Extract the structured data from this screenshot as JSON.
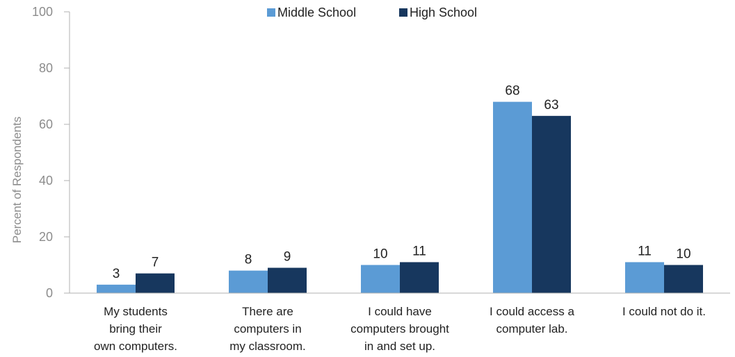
{
  "chart_data": {
    "type": "bar",
    "title": "",
    "xlabel": "",
    "ylabel": "Percent of Respondents",
    "ylim": [
      0,
      100
    ],
    "yticks": [
      0,
      20,
      40,
      60,
      80,
      100
    ],
    "grid": false,
    "legend_position": "top-center",
    "categories": [
      [
        "My students",
        "bring their",
        "own computers."
      ],
      [
        "There are",
        "computers in",
        "my classroom."
      ],
      [
        "I could have",
        "computers brought",
        "in and set up."
      ],
      [
        "I could access a",
        "computer lab."
      ],
      [
        "I could not do it."
      ]
    ],
    "series": [
      {
        "name": "Middle School",
        "color": "#5b9bd5",
        "values": [
          3,
          8,
          10,
          68,
          11
        ]
      },
      {
        "name": "High School",
        "color": "#17375e",
        "values": [
          7,
          9,
          11,
          63,
          10
        ]
      }
    ],
    "axis_color": "#b0b0b0",
    "data_labels": true
  }
}
